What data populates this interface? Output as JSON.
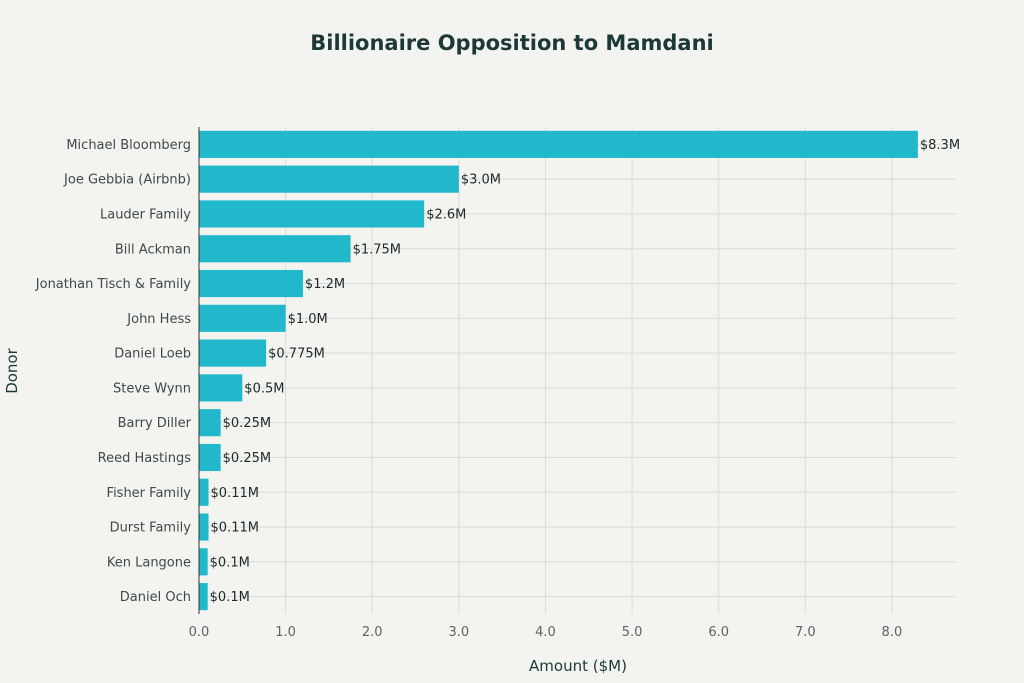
{
  "chart_data": {
    "type": "bar",
    "orientation": "horizontal",
    "title": "Billionaire Opposition to Mamdani",
    "xlabel": "Amount ($M)",
    "ylabel": "Donor",
    "categories": [
      "Michael Bloomberg",
      "Joe Gebbia (Airbnb)",
      "Lauder Family",
      "Bill Ackman",
      "Jonathan Tisch & Family",
      "John Hess",
      "Daniel Loeb",
      "Steve Wynn",
      "Barry Diller",
      "Reed Hastings",
      "Fisher Family",
      "Durst Family",
      "Ken Langone",
      "Daniel Och"
    ],
    "values": [
      8.3,
      3.0,
      2.6,
      1.75,
      1.2,
      1.0,
      0.775,
      0.5,
      0.25,
      0.25,
      0.11,
      0.11,
      0.1,
      0.1
    ],
    "data_labels": [
      "$8.3M",
      "$3.0M",
      "$2.6M",
      "$1.75M",
      "$1.2M",
      "$1.0M",
      "$0.775M",
      "$0.5M",
      "$0.25M",
      "$0.25M",
      "$0.11M",
      "$0.11M",
      "$0.1M",
      "$0.1M"
    ],
    "xticks": [
      "0.0",
      "1.0",
      "2.0",
      "3.0",
      "4.0",
      "5.0",
      "6.0",
      "7.0",
      "8.0"
    ],
    "xlim": [
      0,
      8.74
    ],
    "grid": true,
    "bar_color": "#22b8cc"
  }
}
